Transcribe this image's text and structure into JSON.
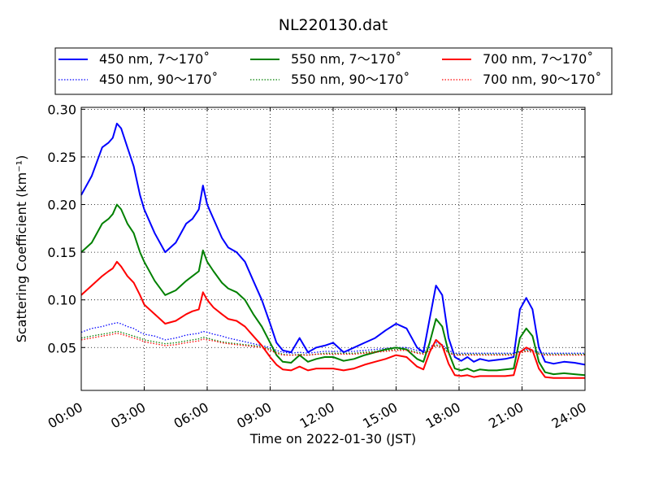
{
  "chart_data": {
    "type": "line",
    "title": "NL220130.dat",
    "xlabel": "Time on 2022-01-30 (JST)",
    "ylabel": "Scattering Coefficient (km⁻¹)",
    "xlim": [
      0,
      24
    ],
    "ylim": [
      0.005,
      0.302
    ],
    "grid": true,
    "legend_position": "top",
    "x_ticks": [
      {
        "value": 0,
        "label": "00:00"
      },
      {
        "value": 3,
        "label": "03:00"
      },
      {
        "value": 6,
        "label": "06:00"
      },
      {
        "value": 9,
        "label": "09:00"
      },
      {
        "value": 12,
        "label": "12:00"
      },
      {
        "value": 15,
        "label": "15:00"
      },
      {
        "value": 18,
        "label": "18:00"
      },
      {
        "value": 21,
        "label": "21:00"
      },
      {
        "value": 24,
        "label": "24:00"
      }
    ],
    "y_ticks": [
      {
        "value": 0.05,
        "label": "0.05"
      },
      {
        "value": 0.1,
        "label": "0.10"
      },
      {
        "value": 0.15,
        "label": "0.15"
      },
      {
        "value": 0.2,
        "label": "0.20"
      },
      {
        "value": 0.25,
        "label": "0.25"
      },
      {
        "value": 0.3,
        "label": "0.30"
      }
    ],
    "x": [
      0,
      0.5,
      1,
      1.3,
      1.5,
      1.7,
      1.9,
      2.2,
      2.5,
      2.8,
      3,
      3.5,
      4,
      4.5,
      5,
      5.3,
      5.6,
      5.8,
      6,
      6.3,
      6.7,
      7,
      7.4,
      7.8,
      8.2,
      8.6,
      9,
      9.3,
      9.6,
      10,
      10.4,
      10.8,
      11.2,
      11.6,
      12,
      12.5,
      13,
      13.5,
      14,
      14.5,
      15,
      15.5,
      16,
      16.3,
      16.6,
      16.9,
      17.2,
      17.5,
      17.8,
      18.1,
      18.4,
      18.7,
      19,
      19.4,
      19.8,
      20.2,
      20.6,
      20.9,
      21.2,
      21.5,
      21.8,
      22.1,
      22.5,
      23,
      23.5,
      24
    ],
    "series": [
      {
        "name": "450 nm, 7～170˚",
        "color": "#0000ff",
        "style": "solid",
        "values": [
          0.21,
          0.23,
          0.26,
          0.265,
          0.27,
          0.285,
          0.28,
          0.26,
          0.24,
          0.21,
          0.195,
          0.17,
          0.15,
          0.16,
          0.18,
          0.185,
          0.195,
          0.22,
          0.2,
          0.185,
          0.165,
          0.155,
          0.15,
          0.14,
          0.12,
          0.1,
          0.075,
          0.055,
          0.047,
          0.045,
          0.06,
          0.045,
          0.05,
          0.052,
          0.055,
          0.045,
          0.05,
          0.055,
          0.06,
          0.068,
          0.075,
          0.07,
          0.05,
          0.045,
          0.08,
          0.115,
          0.105,
          0.06,
          0.04,
          0.036,
          0.04,
          0.035,
          0.038,
          0.036,
          0.037,
          0.038,
          0.04,
          0.09,
          0.102,
          0.09,
          0.05,
          0.035,
          0.033,
          0.035,
          0.034,
          0.032
        ]
      },
      {
        "name": "450 nm, 90～170˚",
        "color": "#0000ff",
        "style": "dotted",
        "values": [
          0.066,
          0.07,
          0.072,
          0.074,
          0.075,
          0.076,
          0.075,
          0.072,
          0.07,
          0.066,
          0.064,
          0.062,
          0.058,
          0.06,
          0.063,
          0.064,
          0.065,
          0.067,
          0.066,
          0.064,
          0.062,
          0.06,
          0.058,
          0.056,
          0.054,
          0.052,
          0.05,
          0.047,
          0.045,
          0.044,
          0.045,
          0.044,
          0.045,
          0.046,
          0.046,
          0.046,
          0.046,
          0.047,
          0.048,
          0.049,
          0.05,
          0.05,
          0.047,
          0.046,
          0.05,
          0.055,
          0.053,
          0.047,
          0.044,
          0.044,
          0.044,
          0.044,
          0.044,
          0.044,
          0.044,
          0.044,
          0.044,
          0.046,
          0.048,
          0.047,
          0.045,
          0.044,
          0.044,
          0.044,
          0.044,
          0.044
        ]
      },
      {
        "name": "550 nm, 7～170˚",
        "color": "#008000",
        "style": "solid",
        "values": [
          0.15,
          0.16,
          0.18,
          0.185,
          0.19,
          0.2,
          0.195,
          0.18,
          0.17,
          0.15,
          0.14,
          0.12,
          0.105,
          0.11,
          0.12,
          0.125,
          0.13,
          0.152,
          0.14,
          0.13,
          0.118,
          0.112,
          0.108,
          0.1,
          0.085,
          0.072,
          0.055,
          0.042,
          0.035,
          0.034,
          0.042,
          0.035,
          0.038,
          0.04,
          0.04,
          0.036,
          0.038,
          0.042,
          0.045,
          0.048,
          0.05,
          0.048,
          0.038,
          0.035,
          0.055,
          0.08,
          0.072,
          0.045,
          0.028,
          0.026,
          0.028,
          0.025,
          0.027,
          0.026,
          0.026,
          0.027,
          0.028,
          0.06,
          0.07,
          0.062,
          0.035,
          0.024,
          0.022,
          0.023,
          0.022,
          0.021
        ]
      },
      {
        "name": "550 nm, 90～170˚",
        "color": "#008000",
        "style": "dotted",
        "values": [
          0.06,
          0.062,
          0.064,
          0.065,
          0.066,
          0.067,
          0.066,
          0.064,
          0.062,
          0.06,
          0.058,
          0.056,
          0.054,
          0.055,
          0.057,
          0.058,
          0.059,
          0.061,
          0.06,
          0.058,
          0.056,
          0.055,
          0.054,
          0.053,
          0.052,
          0.051,
          0.048,
          0.045,
          0.043,
          0.042,
          0.043,
          0.042,
          0.043,
          0.044,
          0.044,
          0.044,
          0.044,
          0.045,
          0.046,
          0.047,
          0.048,
          0.048,
          0.045,
          0.044,
          0.048,
          0.053,
          0.051,
          0.045,
          0.043,
          0.043,
          0.043,
          0.043,
          0.043,
          0.043,
          0.043,
          0.043,
          0.043,
          0.045,
          0.047,
          0.046,
          0.044,
          0.043,
          0.043,
          0.043,
          0.043,
          0.043
        ]
      },
      {
        "name": "700 nm, 7～170˚",
        "color": "#ff0000",
        "style": "solid",
        "values": [
          0.105,
          0.115,
          0.125,
          0.13,
          0.133,
          0.14,
          0.135,
          0.125,
          0.118,
          0.105,
          0.095,
          0.085,
          0.075,
          0.078,
          0.085,
          0.088,
          0.09,
          0.108,
          0.1,
          0.092,
          0.085,
          0.08,
          0.078,
          0.072,
          0.062,
          0.052,
          0.04,
          0.032,
          0.027,
          0.026,
          0.03,
          0.026,
          0.028,
          0.028,
          0.028,
          0.026,
          0.028,
          0.032,
          0.035,
          0.038,
          0.042,
          0.04,
          0.03,
          0.027,
          0.045,
          0.058,
          0.052,
          0.033,
          0.021,
          0.02,
          0.021,
          0.019,
          0.02,
          0.02,
          0.02,
          0.02,
          0.021,
          0.045,
          0.05,
          0.047,
          0.028,
          0.019,
          0.018,
          0.018,
          0.018,
          0.018
        ]
      },
      {
        "name": "700 nm, 90～170˚",
        "color": "#ff0000",
        "style": "dotted",
        "values": [
          0.058,
          0.06,
          0.062,
          0.063,
          0.064,
          0.065,
          0.064,
          0.062,
          0.06,
          0.058,
          0.056,
          0.054,
          0.052,
          0.053,
          0.055,
          0.056,
          0.057,
          0.059,
          0.058,
          0.057,
          0.055,
          0.054,
          0.053,
          0.052,
          0.051,
          0.05,
          0.047,
          0.044,
          0.042,
          0.042,
          0.042,
          0.042,
          0.043,
          0.043,
          0.043,
          0.043,
          0.043,
          0.044,
          0.045,
          0.046,
          0.047,
          0.047,
          0.044,
          0.043,
          0.047,
          0.052,
          0.05,
          0.044,
          0.042,
          0.042,
          0.042,
          0.042,
          0.042,
          0.042,
          0.042,
          0.042,
          0.042,
          0.044,
          0.046,
          0.045,
          0.043,
          0.042,
          0.042,
          0.042,
          0.042,
          0.042
        ]
      }
    ]
  }
}
